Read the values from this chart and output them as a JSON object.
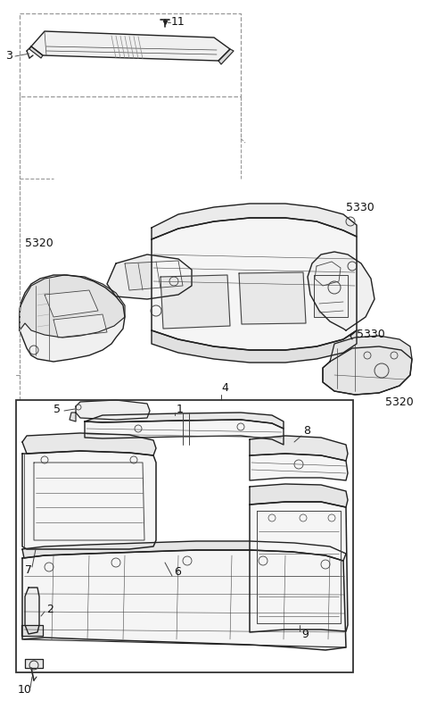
{
  "bg_color": "#ffffff",
  "lc": "#444444",
  "lcd": "#222222",
  "dc": "#999999",
  "fig_width": 4.8,
  "fig_height": 7.94,
  "dpi": 100,
  "font_size": 9
}
